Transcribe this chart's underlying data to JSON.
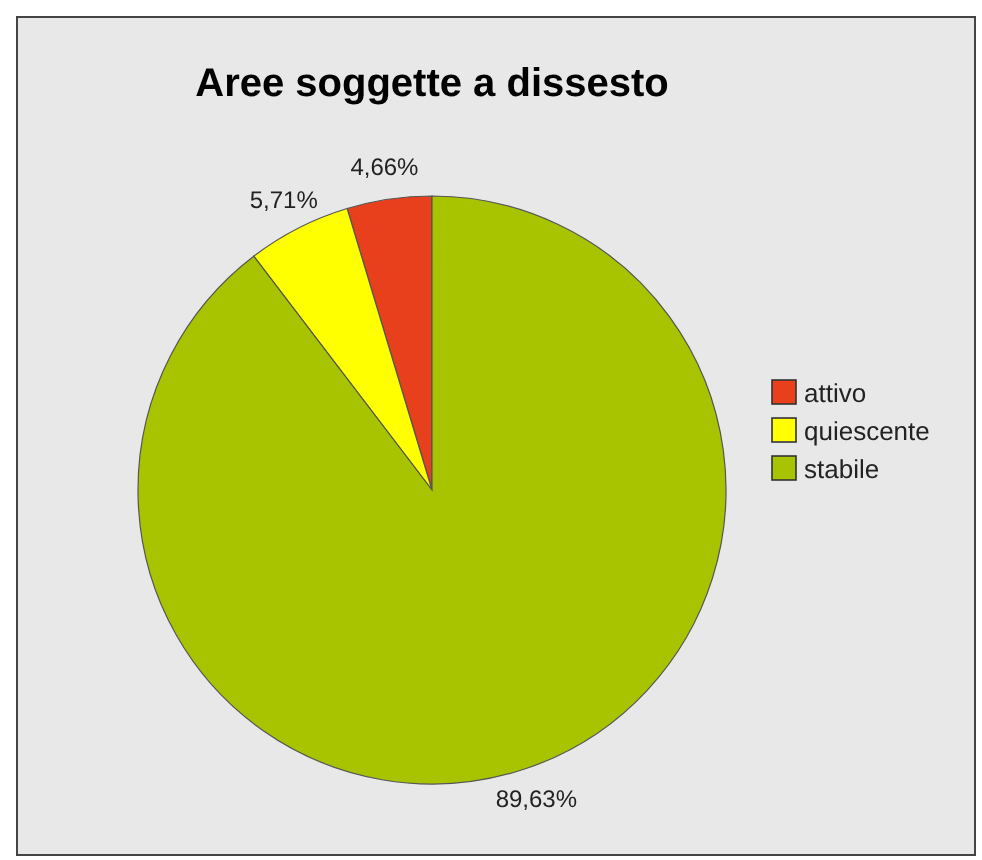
{
  "chart_data": {
    "type": "pie",
    "title": "Aree soggette a dissesto",
    "categories": [
      "attivo",
      "quiescente",
      "stabile"
    ],
    "values": [
      4.66,
      5.71,
      89.63
    ],
    "value_labels": [
      "4,66%",
      "5,71%",
      "89,63%"
    ],
    "colors": [
      "#e8401c",
      "#ffff00",
      "#a8c400"
    ],
    "legend": "right"
  }
}
